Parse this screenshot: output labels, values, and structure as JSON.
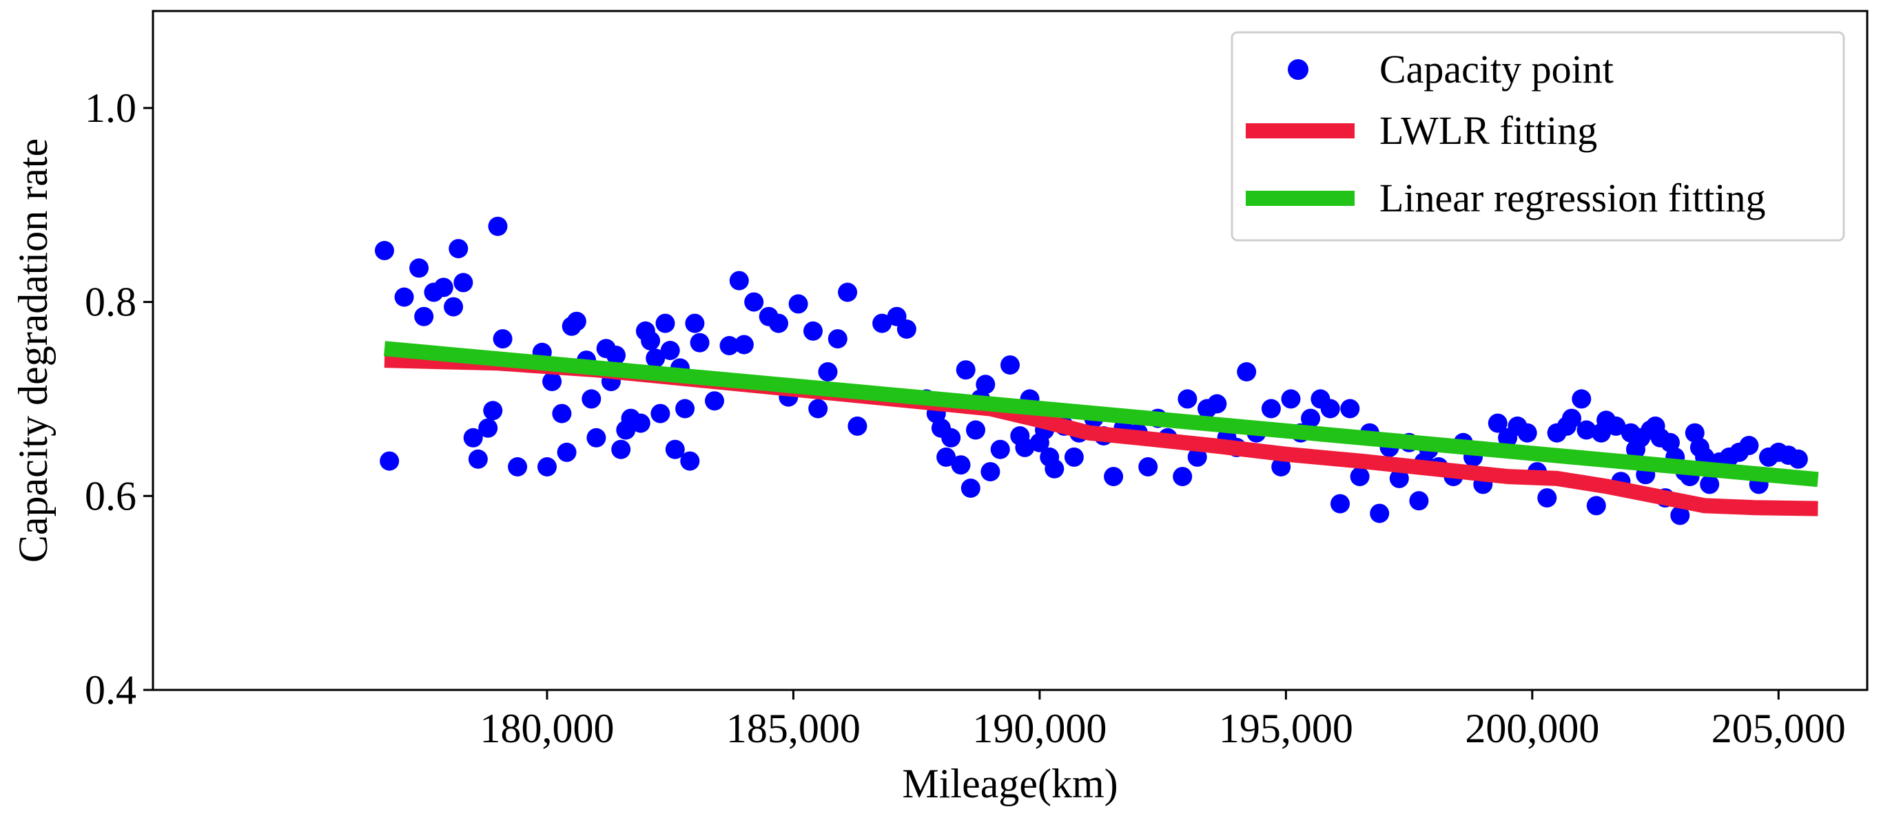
{
  "chart_data": {
    "type": "scatter",
    "title": "",
    "xlabel": "Mileage(km)",
    "ylabel": "Capacity degradation rate",
    "xlim": [
      172000,
      206800
    ],
    "ylim": [
      0.4,
      1.1
    ],
    "xticks": [
      180000,
      185000,
      190000,
      195000,
      200000,
      205000
    ],
    "xtick_labels": [
      "180,000",
      "185,000",
      "190,000",
      "195,000",
      "200,000",
      "205,000"
    ],
    "yticks": [
      0.4,
      0.6,
      0.8,
      1.0
    ],
    "ytick_labels": [
      "0.4",
      "0.6",
      "0.8",
      "1.0"
    ],
    "legend_position": "top-right",
    "series": [
      {
        "name": "Capacity point",
        "kind": "scatter",
        "color": "#0000ff",
        "points": [
          [
            176700,
            0.853
          ],
          [
            176800,
            0.636
          ],
          [
            177100,
            0.805
          ],
          [
            177400,
            0.835
          ],
          [
            177500,
            0.785
          ],
          [
            177700,
            0.81
          ],
          [
            177900,
            0.815
          ],
          [
            178100,
            0.795
          ],
          [
            178200,
            0.855
          ],
          [
            178300,
            0.82
          ],
          [
            178500,
            0.66
          ],
          [
            178600,
            0.638
          ],
          [
            178800,
            0.67
          ],
          [
            178900,
            0.688
          ],
          [
            179000,
            0.878
          ],
          [
            179100,
            0.762
          ],
          [
            179400,
            0.63
          ],
          [
            179900,
            0.748
          ],
          [
            180000,
            0.63
          ],
          [
            180100,
            0.718
          ],
          [
            180300,
            0.685
          ],
          [
            180400,
            0.645
          ],
          [
            180500,
            0.775
          ],
          [
            180600,
            0.78
          ],
          [
            180800,
            0.74
          ],
          [
            180900,
            0.7
          ],
          [
            181000,
            0.66
          ],
          [
            181200,
            0.752
          ],
          [
            181300,
            0.718
          ],
          [
            181400,
            0.745
          ],
          [
            181500,
            0.648
          ],
          [
            181600,
            0.668
          ],
          [
            181700,
            0.68
          ],
          [
            181900,
            0.675
          ],
          [
            182000,
            0.77
          ],
          [
            182100,
            0.76
          ],
          [
            182200,
            0.742
          ],
          [
            182300,
            0.685
          ],
          [
            182400,
            0.778
          ],
          [
            182500,
            0.75
          ],
          [
            182600,
            0.648
          ],
          [
            182700,
            0.732
          ],
          [
            182800,
            0.69
          ],
          [
            182900,
            0.636
          ],
          [
            183000,
            0.778
          ],
          [
            183100,
            0.758
          ],
          [
            183400,
            0.698
          ],
          [
            183700,
            0.755
          ],
          [
            183900,
            0.822
          ],
          [
            184000,
            0.756
          ],
          [
            184200,
            0.8
          ],
          [
            184500,
            0.785
          ],
          [
            184700,
            0.778
          ],
          [
            184900,
            0.702
          ],
          [
            185100,
            0.798
          ],
          [
            185400,
            0.77
          ],
          [
            185500,
            0.69
          ],
          [
            185700,
            0.728
          ],
          [
            185900,
            0.762
          ],
          [
            186100,
            0.81
          ],
          [
            186300,
            0.672
          ],
          [
            186800,
            0.778
          ],
          [
            187100,
            0.785
          ],
          [
            187300,
            0.772
          ],
          [
            187700,
            0.7
          ],
          [
            187900,
            0.685
          ],
          [
            188000,
            0.67
          ],
          [
            188100,
            0.64
          ],
          [
            188200,
            0.66
          ],
          [
            188400,
            0.632
          ],
          [
            188500,
            0.73
          ],
          [
            188600,
            0.608
          ],
          [
            188700,
            0.668
          ],
          [
            188800,
            0.7
          ],
          [
            188900,
            0.715
          ],
          [
            189000,
            0.625
          ],
          [
            189200,
            0.648
          ],
          [
            189400,
            0.735
          ],
          [
            189600,
            0.662
          ],
          [
            189700,
            0.65
          ],
          [
            189800,
            0.7
          ],
          [
            190000,
            0.655
          ],
          [
            190100,
            0.668
          ],
          [
            190200,
            0.64
          ],
          [
            190300,
            0.628
          ],
          [
            190500,
            0.672
          ],
          [
            190700,
            0.64
          ],
          [
            190800,
            0.665
          ],
          [
            191100,
            0.68
          ],
          [
            191300,
            0.662
          ],
          [
            191500,
            0.62
          ],
          [
            191700,
            0.67
          ],
          [
            192000,
            0.665
          ],
          [
            192200,
            0.63
          ],
          [
            192400,
            0.68
          ],
          [
            192600,
            0.66
          ],
          [
            192900,
            0.62
          ],
          [
            193000,
            0.7
          ],
          [
            193200,
            0.64
          ],
          [
            193400,
            0.69
          ],
          [
            193600,
            0.695
          ],
          [
            193800,
            0.66
          ],
          [
            194000,
            0.65
          ],
          [
            194200,
            0.728
          ],
          [
            194400,
            0.665
          ],
          [
            194700,
            0.69
          ],
          [
            194900,
            0.63
          ],
          [
            195100,
            0.7
          ],
          [
            195300,
            0.665
          ],
          [
            195500,
            0.68
          ],
          [
            195700,
            0.7
          ],
          [
            195900,
            0.69
          ],
          [
            196100,
            0.592
          ],
          [
            196300,
            0.69
          ],
          [
            196500,
            0.62
          ],
          [
            196700,
            0.665
          ],
          [
            196900,
            0.582
          ],
          [
            197100,
            0.65
          ],
          [
            197300,
            0.618
          ],
          [
            197500,
            0.655
          ],
          [
            197700,
            0.595
          ],
          [
            197800,
            0.635
          ],
          [
            197900,
            0.648
          ],
          [
            198100,
            0.63
          ],
          [
            198400,
            0.62
          ],
          [
            198600,
            0.655
          ],
          [
            198800,
            0.64
          ],
          [
            199000,
            0.612
          ],
          [
            199300,
            0.675
          ],
          [
            199500,
            0.66
          ],
          [
            199700,
            0.672
          ],
          [
            199900,
            0.665
          ],
          [
            200100,
            0.625
          ],
          [
            200300,
            0.598
          ],
          [
            200500,
            0.665
          ],
          [
            200700,
            0.672
          ],
          [
            200800,
            0.68
          ],
          [
            201000,
            0.7
          ],
          [
            201100,
            0.668
          ],
          [
            201300,
            0.59
          ],
          [
            201400,
            0.665
          ],
          [
            201500,
            0.678
          ],
          [
            201700,
            0.672
          ],
          [
            201800,
            0.615
          ],
          [
            202000,
            0.665
          ],
          [
            202100,
            0.648
          ],
          [
            202200,
            0.66
          ],
          [
            202300,
            0.622
          ],
          [
            202400,
            0.668
          ],
          [
            202500,
            0.672
          ],
          [
            202600,
            0.66
          ],
          [
            202700,
            0.598
          ],
          [
            202800,
            0.655
          ],
          [
            202900,
            0.64
          ],
          [
            203000,
            0.58
          ],
          [
            203100,
            0.625
          ],
          [
            203200,
            0.62
          ],
          [
            203300,
            0.665
          ],
          [
            203400,
            0.65
          ],
          [
            203500,
            0.64
          ],
          [
            203600,
            0.612
          ],
          [
            203800,
            0.635
          ],
          [
            204000,
            0.64
          ],
          [
            204200,
            0.645
          ],
          [
            204400,
            0.652
          ],
          [
            204600,
            0.612
          ],
          [
            204800,
            0.64
          ],
          [
            205000,
            0.645
          ],
          [
            205200,
            0.642
          ],
          [
            205400,
            0.638
          ]
        ]
      },
      {
        "name": "LWLR fitting",
        "kind": "line",
        "color": "#ee1c3a",
        "points": [
          [
            176700,
            0.74
          ],
          [
            179000,
            0.737
          ],
          [
            181000,
            0.73
          ],
          [
            183000,
            0.72
          ],
          [
            185000,
            0.71
          ],
          [
            187000,
            0.7
          ],
          [
            189000,
            0.69
          ],
          [
            190000,
            0.678
          ],
          [
            191000,
            0.665
          ],
          [
            192000,
            0.66
          ],
          [
            193500,
            0.652
          ],
          [
            195000,
            0.643
          ],
          [
            196500,
            0.636
          ],
          [
            198000,
            0.628
          ],
          [
            199500,
            0.62
          ],
          [
            200500,
            0.618
          ],
          [
            201500,
            0.61
          ],
          [
            202500,
            0.6
          ],
          [
            203500,
            0.59
          ],
          [
            204500,
            0.588
          ],
          [
            205800,
            0.587
          ]
        ]
      },
      {
        "name": "Linear regression fitting",
        "kind": "line",
        "color": "#21c416",
        "points": [
          [
            176700,
            0.752
          ],
          [
            205800,
            0.617
          ]
        ]
      }
    ]
  }
}
